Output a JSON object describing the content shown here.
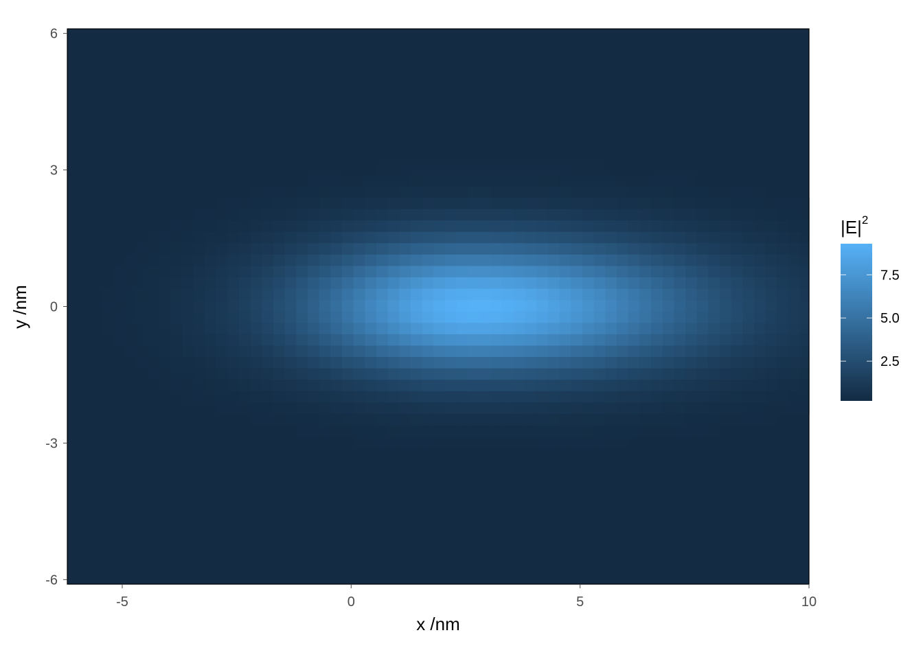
{
  "chart_data": {
    "type": "heatmap",
    "title": "",
    "xlabel": "x /nm",
    "ylabel": "y /nm",
    "xlim": [
      -6.2,
      10.0
    ],
    "ylim": [
      -6.1,
      6.1
    ],
    "x_ticks": [
      -5,
      0,
      5,
      10
    ],
    "x_tick_labels": [
      "-5",
      "0",
      "5",
      "10"
    ],
    "y_ticks": [
      6,
      3,
      0,
      -3,
      -6
    ],
    "y_tick_labels": [
      "6",
      "3",
      "0",
      "-3",
      "-6"
    ],
    "grid": "off",
    "field": {
      "name": "|E|^2",
      "peak_value": 9.3,
      "background_value": 0.2,
      "peak_x": 2.7,
      "peak_y": 0.0,
      "spread_x_left": 2.6,
      "spread_x_right": 3.4,
      "spread_y": 1.0,
      "grid_step": 0.25
    },
    "colorbar": {
      "title_base": "|E|",
      "title_superscript": "2",
      "min": 0.2,
      "max": 9.3,
      "ticks": [
        7.5,
        5.0,
        2.5
      ],
      "tick_labels": [
        "7.5",
        "5.0",
        "2.5"
      ],
      "low_color": "#132B43",
      "high_color": "#56B1F7",
      "position": "right"
    }
  }
}
